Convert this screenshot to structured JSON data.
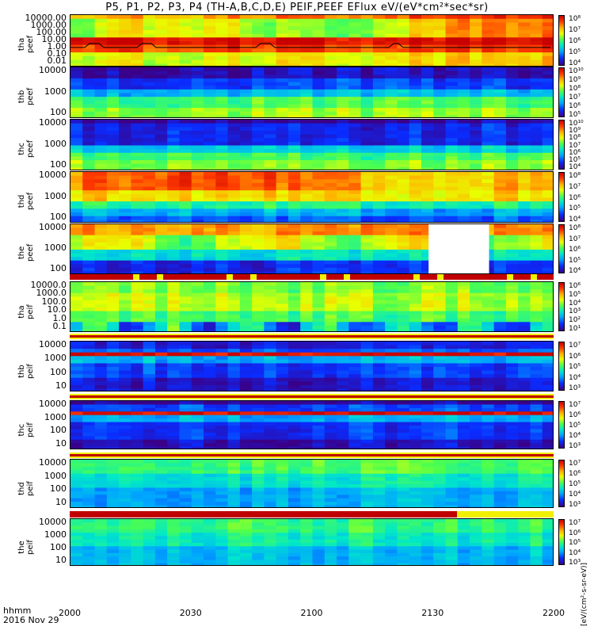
{
  "title": "P5, P1, P2, P3, P4 (TH-A,B,C,D,E) PEIF,PEEF EFlux eV/(eV*cm²*sec*sr)",
  "x_axis": {
    "label_line1": "hhmm",
    "label_line2": "2016 Nov 29",
    "ticks": [
      "2000",
      "2030",
      "2100",
      "2130",
      "2200"
    ]
  },
  "cbar_unit": "[eV/(cm²-s-sr-eV)]",
  "panels": [
    {
      "label": "tha\npeef",
      "yticks": [
        "10000.00",
        "1000.00",
        "100.00",
        "10.00",
        "1.00",
        "0.10",
        "0.01"
      ]
    },
    {
      "label": "thb\npeef",
      "yticks": [
        "10000",
        "1000",
        "100"
      ]
    },
    {
      "label": "thc\npeef",
      "yticks": [
        "10000",
        "1000",
        "100"
      ]
    },
    {
      "label": "thd\npeef",
      "yticks": [
        "10000",
        "1000",
        "100"
      ]
    },
    {
      "label": "the\npeef",
      "yticks": [
        "10000",
        "1000",
        "100"
      ]
    },
    {
      "label": "tha\npeif",
      "yticks": [
        "10000.0",
        "1000.0",
        "100.0",
        "10.0",
        "1.0",
        "0.1"
      ]
    },
    {
      "label": "thb\npeif",
      "yticks": [
        "10000",
        "1000",
        "100",
        "10"
      ]
    },
    {
      "label": "thc\npeif",
      "yticks": [
        "10000",
        "1000",
        "100",
        "10"
      ]
    },
    {
      "label": "thd\npeif",
      "yticks": [
        "10000",
        "1000",
        "100",
        "10"
      ]
    },
    {
      "label": "the\npeif",
      "yticks": [
        "10000",
        "1000",
        "100",
        "10"
      ]
    }
  ],
  "colorbars": [
    [
      "10⁸",
      "10⁷",
      "10⁶",
      "10⁵",
      "10⁴"
    ],
    [
      "10¹⁰",
      "10⁹",
      "10⁸",
      "10⁷",
      "10⁶",
      "10⁵"
    ],
    [
      "10¹⁰",
      "10⁹",
      "10⁸",
      "10⁷",
      "10⁶",
      "10⁵",
      "10⁴"
    ],
    [
      "10⁸",
      "10⁷",
      "10⁶",
      "10⁵",
      "10⁴"
    ],
    [
      "10⁸",
      "10⁷",
      "10⁶",
      "10⁵",
      "10⁴"
    ],
    [
      "10⁶",
      "10⁵",
      "10⁴",
      "10³",
      "10²",
      "10¹"
    ],
    [
      "10⁷",
      "10⁶",
      "10⁵",
      "10⁴",
      "10³"
    ],
    [
      "10⁷",
      "10⁶",
      "10⁵",
      "10⁴",
      "10³"
    ],
    [
      "10⁷",
      "10⁶",
      "10⁵",
      "10⁴",
      "10³"
    ],
    [
      "10⁷",
      "10⁶",
      "10⁵",
      "10⁴",
      "10³"
    ]
  ],
  "chart_data": {
    "type": "heatmap",
    "title": "P5, P1, P2, P3, P4 (TH-A,B,C,D,E) PEIF,PEEF EFlux eV/(eV*cm²*sec*sr)",
    "x_range": [
      "2016-11-29 20:00",
      "2016-11-29 22:00"
    ],
    "colors": {
      "low": "#3a0087",
      "mid": "#4dff4d",
      "high": "#c80000",
      "background": "#ffffff"
    },
    "spectrograms": [
      {
        "name": "tha peef",
        "instrument": "electrons",
        "y_scale": "log",
        "ylim": [
          0.01,
          20000
        ]
      },
      {
        "name": "thb peef",
        "instrument": "electrons",
        "y_scale": "log",
        "ylim": [
          20,
          25000
        ]
      },
      {
        "name": "thc peef",
        "instrument": "electrons",
        "y_scale": "log",
        "ylim": [
          20,
          25000
        ]
      },
      {
        "name": "thd peef",
        "instrument": "electrons",
        "y_scale": "log",
        "ylim": [
          20,
          25000
        ]
      },
      {
        "name": "the peef",
        "instrument": "electrons",
        "y_scale": "log",
        "ylim": [
          20,
          25000
        ],
        "data_gap": [
          "21:30",
          "21:45"
        ]
      },
      {
        "name": "tha peif",
        "instrument": "ions",
        "y_scale": "log",
        "ylim": [
          0.1,
          20000
        ]
      },
      {
        "name": "thb peif",
        "instrument": "ions",
        "y_scale": "log",
        "ylim": [
          5,
          25000
        ]
      },
      {
        "name": "thc peif",
        "instrument": "ions",
        "y_scale": "log",
        "ylim": [
          5,
          25000
        ]
      },
      {
        "name": "thd peif",
        "instrument": "ions",
        "y_scale": "log",
        "ylim": [
          5,
          25000
        ]
      },
      {
        "name": "the peif",
        "instrument": "ions",
        "y_scale": "log",
        "ylim": [
          5,
          25000
        ]
      }
    ]
  }
}
